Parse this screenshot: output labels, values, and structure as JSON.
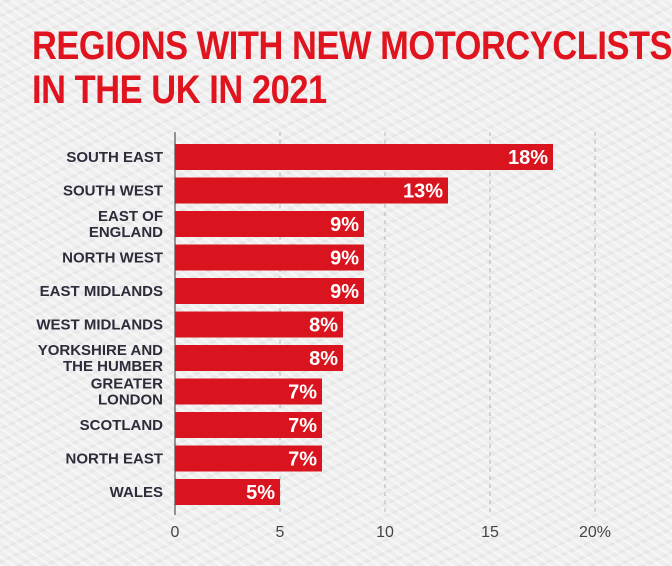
{
  "title": {
    "line1": "REGIONS WITH NEW MOTORCYCLISTS",
    "line2": "IN THE UK IN 2021"
  },
  "colors": {
    "bar": "#d9141e",
    "title": "#e0141e",
    "grid": "#b5b5b5",
    "text": "#2c2c3a"
  },
  "chart_data": {
    "type": "bar",
    "orientation": "horizontal",
    "title": "REGIONS WITH NEW MOTORCYCLISTS IN THE UK IN 2021",
    "categories": [
      "SOUTH EAST",
      "SOUTH WEST",
      "EAST OF ENGLAND",
      "NORTH WEST",
      "EAST MIDLANDS",
      "WEST MIDLANDS",
      "YORKSHIRE AND THE HUMBER",
      "GREATER LONDON",
      "SCOTLAND",
      "NORTH EAST",
      "WALES"
    ],
    "category_lines": [
      [
        "SOUTH EAST"
      ],
      [
        "SOUTH WEST"
      ],
      [
        "EAST OF",
        "ENGLAND"
      ],
      [
        "NORTH WEST"
      ],
      [
        "EAST MIDLANDS"
      ],
      [
        "WEST MIDLANDS"
      ],
      [
        "YORKSHIRE AND",
        "THE HUMBER"
      ],
      [
        "GREATER",
        "LONDON"
      ],
      [
        "SCOTLAND"
      ],
      [
        "NORTH EAST"
      ],
      [
        "WALES"
      ]
    ],
    "values": [
      18,
      13,
      9,
      9,
      9,
      8,
      8,
      7,
      7,
      7,
      5
    ],
    "value_labels": [
      "18%",
      "13%",
      "9%",
      "9%",
      "9%",
      "8%",
      "8%",
      "7%",
      "7%",
      "7%",
      "5%"
    ],
    "xlim": [
      0,
      20
    ],
    "x_ticks": [
      0,
      5,
      10,
      15,
      20
    ],
    "x_tick_labels": [
      "0",
      "5",
      "10",
      "15",
      "20%"
    ],
    "grid": true,
    "xlabel": "",
    "ylabel": ""
  }
}
